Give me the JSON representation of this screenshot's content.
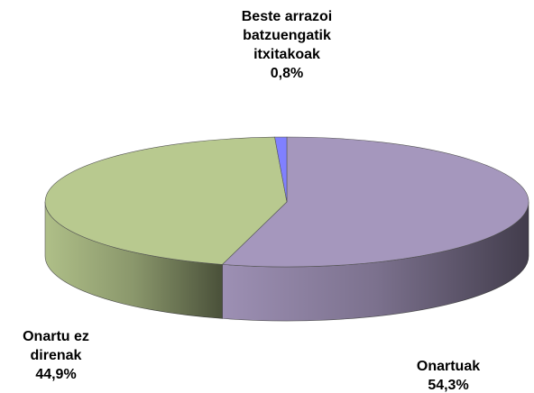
{
  "chart_data": {
    "type": "pie",
    "categories": [
      "Onartuak",
      "Onartu ez direnak",
      "Beste arrazoi batzuengatik itxitakoak"
    ],
    "values": [
      54.3,
      44.9,
      0.8
    ],
    "value_labels": [
      "54,3%",
      "44,9%",
      "0,8%"
    ],
    "colors": [
      "#a597bd",
      "#b8c98f",
      "#8080ff"
    ]
  }
}
